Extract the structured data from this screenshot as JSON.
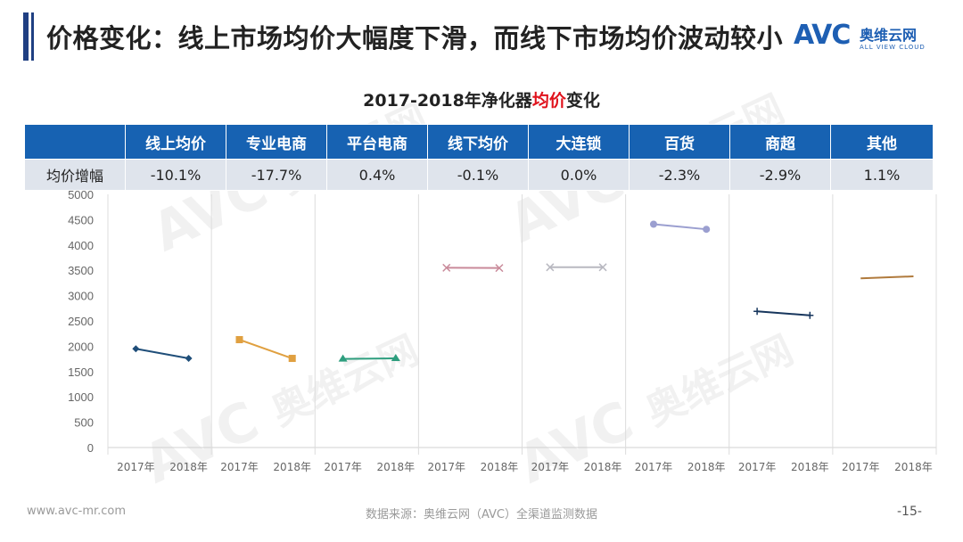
{
  "header": {
    "title": "价格变化：线上市场均价大幅度下滑，而线下市场均价波动较小"
  },
  "logo": {
    "brand": "AVC",
    "cn_name": "奥维云网",
    "en_name": "ALL VIEW CLOUD"
  },
  "watermark": {
    "brand": "AVC",
    "cn_name": "奥维云网",
    "en_name": "ALL VIEW CLOUD"
  },
  "chart_title": {
    "prefix": "2017-2018年净化器",
    "highlight": "均价",
    "suffix": "变化"
  },
  "table": {
    "row_label": "均价增幅",
    "columns": [
      "线上均价",
      "专业电商",
      "平台电商",
      "线下均价",
      "大连锁",
      "百货",
      "商超",
      "其他"
    ],
    "values": [
      "-10.1%",
      "-17.7%",
      "0.4%",
      "-0.1%",
      "0.0%",
      "-2.3%",
      "-2.9%",
      "1.1%"
    ]
  },
  "chart_data": {
    "type": "line",
    "ylim": [
      0,
      5000
    ],
    "yticks": [
      0,
      500,
      1000,
      1500,
      2000,
      2500,
      3000,
      3500,
      4000,
      4500,
      5000
    ],
    "x_labels": [
      "2017年",
      "2018年"
    ],
    "grid": "vertical separators between groups",
    "series": [
      {
        "color": "#1f4e79",
        "marker": "diamond",
        "values": [
          1950,
          1760
        ]
      },
      {
        "color": "#e0a040",
        "marker": "square",
        "values": [
          2130,
          1760
        ]
      },
      {
        "color": "#2e9e7e",
        "marker": "triangle",
        "values": [
          1750,
          1760
        ]
      },
      {
        "color": "#c98a9a",
        "marker": "x",
        "values": [
          3550,
          3545
        ]
      },
      {
        "color": "#b8b8c0",
        "marker": "x",
        "values": [
          3560,
          3560
        ]
      },
      {
        "color": "#9b9fd0",
        "marker": "circle",
        "values": [
          4410,
          4310
        ]
      },
      {
        "color": "#17365d",
        "marker": "plus",
        "values": [
          2690,
          2610
        ]
      },
      {
        "color": "#b07a3c",
        "marker": "none",
        "values": [
          3340,
          3380
        ]
      }
    ]
  },
  "footer": {
    "website": "www.avc-mr.com",
    "source": "数据来源：奥维云网（AVC）全渠道监测数据",
    "page": "-15-"
  }
}
